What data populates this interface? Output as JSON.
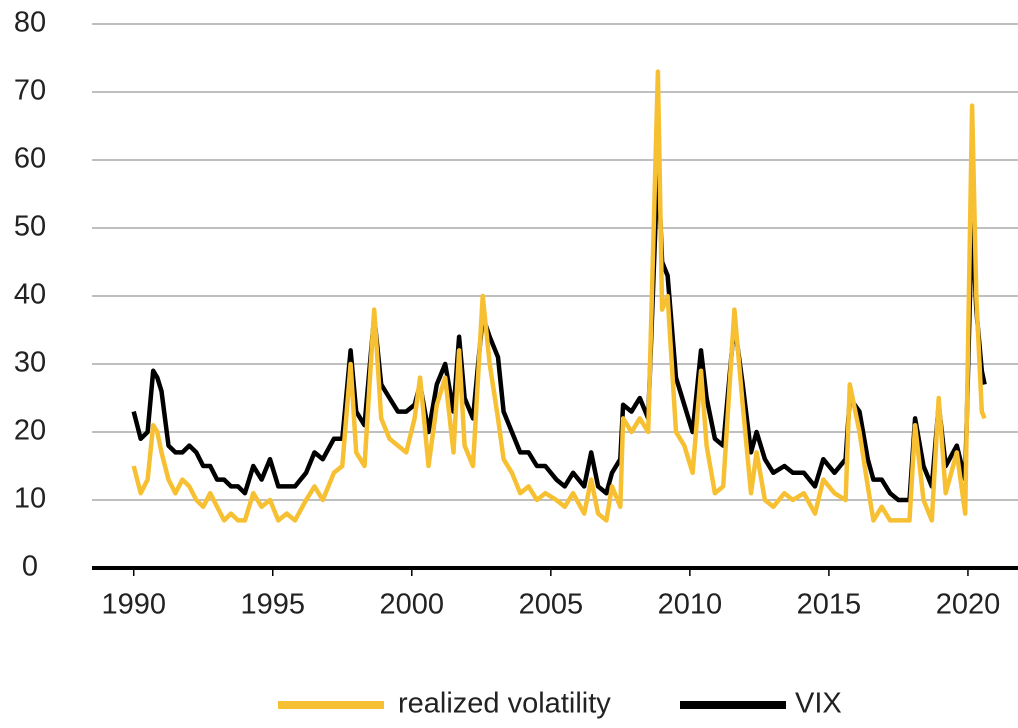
{
  "chart_data": {
    "type": "line",
    "x": [
      1990.0,
      1990.25,
      1990.5,
      1990.7,
      1990.85,
      1991.0,
      1991.25,
      1991.5,
      1991.75,
      1992.0,
      1992.25,
      1992.5,
      1992.75,
      1993.0,
      1993.25,
      1993.5,
      1993.75,
      1994.0,
      1994.3,
      1994.6,
      1994.9,
      1995.2,
      1995.5,
      1995.8,
      1996.2,
      1996.5,
      1996.8,
      1997.2,
      1997.5,
      1997.8,
      1998.0,
      1998.3,
      1998.65,
      1998.9,
      1999.2,
      1999.5,
      1999.8,
      2000.1,
      2000.3,
      2000.6,
      2000.9,
      2001.2,
      2001.5,
      2001.7,
      2001.9,
      2002.2,
      2002.55,
      2002.8,
      2003.1,
      2003.3,
      2003.6,
      2003.9,
      2004.2,
      2004.5,
      2004.8,
      2005.2,
      2005.5,
      2005.8,
      2006.2,
      2006.45,
      2006.7,
      2007.0,
      2007.2,
      2007.5,
      2007.6,
      2007.9,
      2008.2,
      2008.5,
      2008.85,
      2009.0,
      2009.2,
      2009.5,
      2009.8,
      2010.1,
      2010.4,
      2010.6,
      2010.9,
      2011.2,
      2011.6,
      2011.9,
      2012.2,
      2012.4,
      2012.7,
      2013.0,
      2013.4,
      2013.7,
      2014.1,
      2014.5,
      2014.8,
      2015.2,
      2015.6,
      2015.75,
      2016.1,
      2016.4,
      2016.6,
      2016.9,
      2017.2,
      2017.5,
      2017.9,
      2018.1,
      2018.4,
      2018.7,
      2018.95,
      2019.2,
      2019.6,
      2019.9,
      2020.15,
      2020.3,
      2020.5,
      2020.6
    ],
    "series": [
      {
        "name": "realized volatility",
        "color": "#f7c033",
        "values": [
          15,
          11,
          13,
          21,
          20,
          17,
          13,
          11,
          13,
          12,
          10,
          9,
          11,
          9,
          7,
          8,
          7,
          7,
          11,
          9,
          10,
          7,
          8,
          7,
          10,
          12,
          10,
          14,
          15,
          30,
          17,
          15,
          38,
          22,
          19,
          18,
          17,
          22,
          28,
          15,
          24,
          28,
          17,
          32,
          18,
          15,
          40,
          30,
          22,
          16,
          14,
          11,
          12,
          10,
          11,
          10,
          9,
          11,
          8,
          13,
          8,
          7,
          12,
          9,
          22,
          20,
          22,
          20,
          73,
          38,
          40,
          20,
          18,
          14,
          29,
          18,
          11,
          12,
          38,
          24,
          11,
          17,
          10,
          9,
          11,
          10,
          11,
          8,
          13,
          11,
          10,
          27,
          20,
          12,
          7,
          9,
          7,
          7,
          7,
          21,
          10,
          7,
          25,
          11,
          17,
          8,
          68,
          40,
          23,
          22
        ]
      },
      {
        "name": "VIX",
        "color": "#000000",
        "values": [
          23,
          19,
          20,
          29,
          28,
          26,
          18,
          17,
          17,
          18,
          17,
          15,
          15,
          13,
          13,
          12,
          12,
          11,
          15,
          13,
          16,
          12,
          12,
          12,
          14,
          17,
          16,
          19,
          19,
          32,
          23,
          21,
          37,
          27,
          25,
          23,
          23,
          24,
          27,
          20,
          27,
          30,
          23,
          34,
          25,
          22,
          37,
          34,
          31,
          23,
          20,
          17,
          17,
          15,
          15,
          13,
          12,
          14,
          12,
          17,
          12,
          11,
          14,
          16,
          24,
          23,
          25,
          22,
          60,
          45,
          43,
          28,
          24,
          20,
          32,
          25,
          19,
          18,
          36,
          27,
          17,
          20,
          16,
          14,
          15,
          14,
          14,
          12,
          16,
          14,
          16,
          25,
          23,
          16,
          13,
          13,
          11,
          10,
          10,
          22,
          15,
          12,
          24,
          15,
          18,
          13,
          52,
          38,
          29,
          27
        ]
      }
    ],
    "xlim": [
      1988.5,
      2021.8
    ],
    "ylim": [
      0,
      80
    ],
    "xticks": [
      1990,
      1995,
      2000,
      2005,
      2010,
      2015,
      2020
    ],
    "yticks": [
      0,
      10,
      20,
      30,
      40,
      50,
      60,
      70,
      80
    ],
    "grid": true
  }
}
